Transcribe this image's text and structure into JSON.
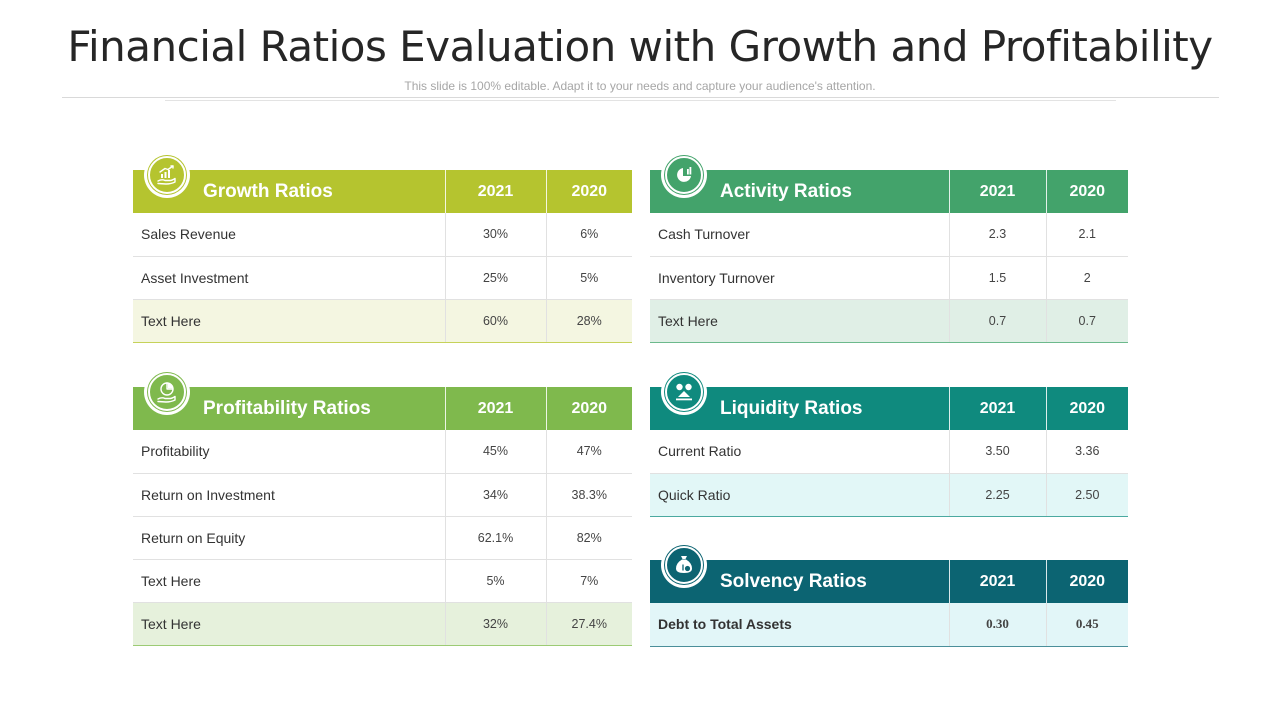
{
  "title": "Financial Ratios Evaluation with Growth and Profitability",
  "subtitle": "This slide is 100% editable. Adapt it to your needs and capture your audience's attention.",
  "colors": {
    "growth": "#b5c42f",
    "profitability": "#7fb94d",
    "activity": "#43a36b",
    "liquidity": "#0f8a7e",
    "solvency": "#0c6472"
  },
  "growth": {
    "icon": "growth-chart-hand-icon",
    "heading": "Growth Ratios",
    "col1": "2021",
    "col2": "2020",
    "rows": [
      {
        "name": "Sales Revenue",
        "v2021": "30%",
        "v2020": "6%"
      },
      {
        "name": "Asset Investment",
        "v2021": "25%",
        "v2020": "5%"
      },
      {
        "name": "Text Here",
        "v2021": "60%",
        "v2020": "28%"
      }
    ]
  },
  "profitability": {
    "icon": "pie-chart-hand-icon",
    "heading": "Profitability Ratios",
    "col1": "2021",
    "col2": "2020",
    "rows": [
      {
        "name": "Profitability",
        "v2021": "45%",
        "v2020": "47%"
      },
      {
        "name": "Return on Investment",
        "v2021": "34%",
        "v2020": "38.3%"
      },
      {
        "name": "Return on Equity",
        "v2021": "62.1%",
        "v2020": "82%"
      },
      {
        "name": "Text Here",
        "v2021": "5%",
        "v2020": "7%"
      },
      {
        "name": "Text Here",
        "v2021": "32%",
        "v2020": "27.4%"
      }
    ]
  },
  "activity": {
    "icon": "pie-bar-chart-icon",
    "heading": "Activity Ratios",
    "col1": "2021",
    "col2": "2020",
    "rows": [
      {
        "name": "Cash Turnover",
        "v2021": "2.3",
        "v2020": "2.1"
      },
      {
        "name": "Inventory Turnover",
        "v2021": "1.5",
        "v2020": "2"
      },
      {
        "name": "Text Here",
        "v2021": "0.7",
        "v2020": "0.7"
      }
    ]
  },
  "liquidity": {
    "icon": "coins-balance-icon",
    "heading": "Liquidity Ratios",
    "col1": "2021",
    "col2": "2020",
    "rows": [
      {
        "name": "Current Ratio",
        "v2021": "3.50",
        "v2020": "3.36"
      },
      {
        "name": "Quick Ratio",
        "v2021": "2.25",
        "v2020": "2.50"
      }
    ]
  },
  "solvency": {
    "icon": "money-bag-icon",
    "heading": "Solvency Ratios",
    "col1": "2021",
    "col2": "2020",
    "rows": [
      {
        "name": "Debt to Total Assets",
        "v2021": "0.30",
        "v2020": "0.45"
      }
    ]
  }
}
